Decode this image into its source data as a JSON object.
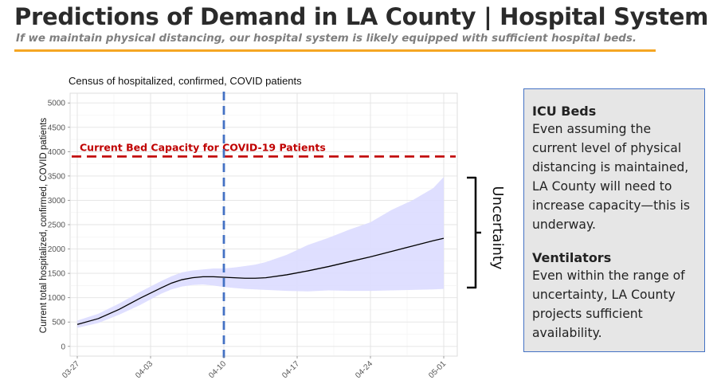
{
  "header": {
    "title": "Predictions of Demand in LA County | Hospital System",
    "subtitle": "If we maintain physical distancing, our hospital system is likely equipped with sufficient hospital beds."
  },
  "colors": {
    "accent_rule": "#f5a623",
    "capacity_line": "#c00000",
    "date_marker": "#4472c4",
    "band_fill": "#dcdcff",
    "median_line": "#000000"
  },
  "callout": {
    "icu_title": "ICU Beds",
    "icu_text": "Even assuming the current level of physical distancing is maintained, LA County will need to increase capacity—this is underway.",
    "vent_title": "Ventilators",
    "vent_text": "Even within the range of uncertainty, LA County projects sufficient availability."
  },
  "chart_data": {
    "type": "line",
    "title": "Census of hospitalized, confirmed, COVID patients",
    "xlabel": "",
    "ylabel": "Current total hospitalized, confirmed, COVID patients",
    "xlim": [
      0,
      35
    ],
    "ylim": [
      -200,
      5200
    ],
    "grid": true,
    "yticks": [
      0,
      500,
      1000,
      1500,
      2000,
      2500,
      3000,
      3500,
      4000,
      4500,
      5000
    ],
    "xticks": [
      {
        "day": 0,
        "label": "03-27"
      },
      {
        "day": 7,
        "label": "04-03"
      },
      {
        "day": 14,
        "label": "04-10"
      },
      {
        "day": 21,
        "label": "04-17"
      },
      {
        "day": 28,
        "label": "04-24"
      },
      {
        "day": 35,
        "label": "05-01"
      }
    ],
    "series": [
      {
        "x": [
          0,
          2,
          4,
          6,
          8,
          9,
          10,
          11,
          12,
          13,
          14,
          15,
          16,
          17,
          18,
          20,
          22,
          24,
          26,
          28,
          30,
          32,
          34,
          35
        ],
        "values": [
          450,
          570,
          760,
          990,
          1200,
          1300,
          1370,
          1410,
          1430,
          1430,
          1420,
          1410,
          1400,
          1400,
          1410,
          1470,
          1550,
          1640,
          1740,
          1840,
          1950,
          2060,
          2170,
          2220
        ]
      }
    ],
    "band": {
      "x": [
        0,
        2,
        4,
        6,
        8,
        9,
        10,
        11,
        12,
        13,
        14,
        15,
        16,
        17,
        18,
        20,
        22,
        24,
        26,
        28,
        30,
        32,
        34,
        35
      ],
      "lower": [
        380,
        480,
        650,
        850,
        1080,
        1170,
        1230,
        1260,
        1270,
        1250,
        1220,
        1200,
        1180,
        1170,
        1160,
        1140,
        1130,
        1150,
        1140,
        1140,
        1150,
        1160,
        1170,
        1180
      ],
      "upper": [
        530,
        670,
        880,
        1120,
        1340,
        1440,
        1520,
        1560,
        1580,
        1600,
        1600,
        1620,
        1650,
        1680,
        1730,
        1880,
        2080,
        2230,
        2400,
        2550,
        2800,
        3000,
        3250,
        3480
      ]
    },
    "annotations": {
      "capacity_label": "Current Bed Capacity for COVID-19 Patients",
      "capacity_value": 3900,
      "marker_day": 14,
      "bracket_label": "Uncertainty"
    }
  }
}
